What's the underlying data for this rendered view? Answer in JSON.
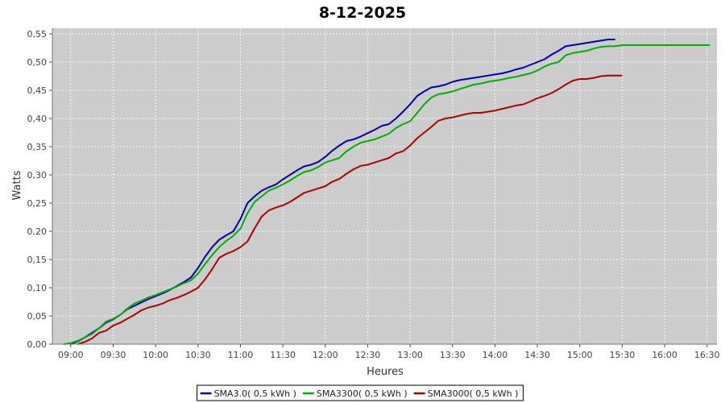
{
  "chart_data": {
    "type": "line",
    "title": "8-12-2025",
    "xlabel": "Heures",
    "ylabel": "Watts",
    "xlim": [
      "08:47",
      "16:37"
    ],
    "ylim": [
      0,
      0.56
    ],
    "x_ticks": [
      "09:00",
      "09:30",
      "10:00",
      "10:30",
      "11:00",
      "11:30",
      "12:00",
      "12:30",
      "13:00",
      "13:30",
      "14:00",
      "14:30",
      "15:00",
      "15:30",
      "16:00",
      "16:30"
    ],
    "y_ticks": [
      "0,00",
      "0,05",
      "0,10",
      "0,15",
      "0,20",
      "0,25",
      "0,30",
      "0,35",
      "0,40",
      "0,45",
      "0,50",
      "0,55"
    ],
    "y_tick_values": [
      0,
      0.05,
      0.1,
      0.15,
      0.2,
      0.25,
      0.3,
      0.35,
      0.4,
      0.45,
      0.5,
      0.55
    ],
    "grid": true,
    "legend_position": "bottom",
    "colors": {
      "plot_bg": "#cccccc",
      "grid": "#ffffff",
      "page_bg": "#ffffff"
    },
    "series": [
      {
        "name": "SMA3.0( 0,5 kWh )",
        "color": "#0000b0",
        "points": [
          [
            "09:00",
            0.0
          ],
          [
            "09:05",
            0.005
          ],
          [
            "09:10",
            0.012
          ],
          [
            "09:15",
            0.02
          ],
          [
            "09:20",
            0.028
          ],
          [
            "09:25",
            0.038
          ],
          [
            "09:30",
            0.044
          ],
          [
            "09:35",
            0.052
          ],
          [
            "09:40",
            0.062
          ],
          [
            "09:45",
            0.068
          ],
          [
            "09:50",
            0.074
          ],
          [
            "09:55",
            0.08
          ],
          [
            "10:00",
            0.085
          ],
          [
            "10:05",
            0.09
          ],
          [
            "10:10",
            0.096
          ],
          [
            "10:15",
            0.103
          ],
          [
            "10:20",
            0.11
          ],
          [
            "10:25",
            0.118
          ],
          [
            "10:30",
            0.135
          ],
          [
            "10:35",
            0.155
          ],
          [
            "10:40",
            0.172
          ],
          [
            "10:45",
            0.185
          ],
          [
            "10:50",
            0.193
          ],
          [
            "10:55",
            0.2
          ],
          [
            "11:00",
            0.222
          ],
          [
            "11:05",
            0.25
          ],
          [
            "11:10",
            0.262
          ],
          [
            "11:15",
            0.272
          ],
          [
            "11:20",
            0.278
          ],
          [
            "11:25",
            0.283
          ],
          [
            "11:30",
            0.292
          ],
          [
            "11:35",
            0.3
          ],
          [
            "11:40",
            0.308
          ],
          [
            "11:45",
            0.315
          ],
          [
            "11:50",
            0.318
          ],
          [
            "11:55",
            0.323
          ],
          [
            "12:00",
            0.332
          ],
          [
            "12:05",
            0.343
          ],
          [
            "12:10",
            0.352
          ],
          [
            "12:15",
            0.36
          ],
          [
            "12:20",
            0.363
          ],
          [
            "12:25",
            0.368
          ],
          [
            "12:30",
            0.374
          ],
          [
            "12:35",
            0.38
          ],
          [
            "12:40",
            0.387
          ],
          [
            "12:45",
            0.39
          ],
          [
            "12:50",
            0.4
          ],
          [
            "12:55",
            0.412
          ],
          [
            "13:00",
            0.425
          ],
          [
            "13:05",
            0.44
          ],
          [
            "13:10",
            0.448
          ],
          [
            "13:15",
            0.455
          ],
          [
            "13:20",
            0.457
          ],
          [
            "13:25",
            0.46
          ],
          [
            "13:30",
            0.465
          ],
          [
            "13:35",
            0.468
          ],
          [
            "13:40",
            0.47
          ],
          [
            "13:45",
            0.472
          ],
          [
            "13:50",
            0.474
          ],
          [
            "13:55",
            0.476
          ],
          [
            "14:00",
            0.478
          ],
          [
            "14:05",
            0.48
          ],
          [
            "14:10",
            0.483
          ],
          [
            "14:15",
            0.487
          ],
          [
            "14:20",
            0.49
          ],
          [
            "14:25",
            0.495
          ],
          [
            "14:30",
            0.5
          ],
          [
            "14:35",
            0.505
          ],
          [
            "14:40",
            0.513
          ],
          [
            "14:45",
            0.52
          ],
          [
            "14:50",
            0.528
          ],
          [
            "14:55",
            0.53
          ],
          [
            "15:00",
            0.532
          ],
          [
            "15:05",
            0.534
          ],
          [
            "15:10",
            0.536
          ],
          [
            "15:15",
            0.538
          ],
          [
            "15:20",
            0.54
          ],
          [
            "15:25",
            0.54
          ]
        ]
      },
      {
        "name": "SMA3300( 0,5 kWh )",
        "color": "#00b000",
        "points": [
          [
            "08:55",
            0.0
          ],
          [
            "09:00",
            0.002
          ],
          [
            "09:05",
            0.006
          ],
          [
            "09:10",
            0.012
          ],
          [
            "09:15",
            0.018
          ],
          [
            "09:20",
            0.028
          ],
          [
            "09:25",
            0.04
          ],
          [
            "09:30",
            0.045
          ],
          [
            "09:35",
            0.052
          ],
          [
            "09:40",
            0.063
          ],
          [
            "09:45",
            0.072
          ],
          [
            "09:50",
            0.077
          ],
          [
            "09:55",
            0.083
          ],
          [
            "10:00",
            0.087
          ],
          [
            "10:05",
            0.092
          ],
          [
            "10:10",
            0.097
          ],
          [
            "10:15",
            0.102
          ],
          [
            "10:20",
            0.108
          ],
          [
            "10:25",
            0.113
          ],
          [
            "10:30",
            0.125
          ],
          [
            "10:35",
            0.142
          ],
          [
            "10:40",
            0.158
          ],
          [
            "10:45",
            0.172
          ],
          [
            "10:50",
            0.183
          ],
          [
            "10:55",
            0.192
          ],
          [
            "11:00",
            0.205
          ],
          [
            "11:05",
            0.232
          ],
          [
            "11:10",
            0.252
          ],
          [
            "11:15",
            0.262
          ],
          [
            "11:20",
            0.272
          ],
          [
            "11:25",
            0.277
          ],
          [
            "11:30",
            0.283
          ],
          [
            "11:35",
            0.29
          ],
          [
            "11:40",
            0.298
          ],
          [
            "11:45",
            0.305
          ],
          [
            "11:50",
            0.308
          ],
          [
            "11:55",
            0.314
          ],
          [
            "12:00",
            0.322
          ],
          [
            "12:05",
            0.326
          ],
          [
            "12:10",
            0.33
          ],
          [
            "12:15",
            0.342
          ],
          [
            "12:20",
            0.35
          ],
          [
            "12:25",
            0.357
          ],
          [
            "12:30",
            0.36
          ],
          [
            "12:35",
            0.363
          ],
          [
            "12:40",
            0.368
          ],
          [
            "12:45",
            0.373
          ],
          [
            "12:50",
            0.383
          ],
          [
            "12:55",
            0.39
          ],
          [
            "13:00",
            0.395
          ],
          [
            "13:05",
            0.41
          ],
          [
            "13:10",
            0.425
          ],
          [
            "13:15",
            0.437
          ],
          [
            "13:20",
            0.443
          ],
          [
            "13:25",
            0.445
          ],
          [
            "13:30",
            0.448
          ],
          [
            "13:35",
            0.452
          ],
          [
            "13:40",
            0.456
          ],
          [
            "13:45",
            0.46
          ],
          [
            "13:50",
            0.462
          ],
          [
            "13:55",
            0.465
          ],
          [
            "14:00",
            0.467
          ],
          [
            "14:05",
            0.469
          ],
          [
            "14:10",
            0.472
          ],
          [
            "14:15",
            0.474
          ],
          [
            "14:20",
            0.477
          ],
          [
            "14:25",
            0.48
          ],
          [
            "14:30",
            0.485
          ],
          [
            "14:35",
            0.492
          ],
          [
            "14:40",
            0.497
          ],
          [
            "14:45",
            0.5
          ],
          [
            "14:50",
            0.512
          ],
          [
            "14:55",
            0.516
          ],
          [
            "15:00",
            0.518
          ],
          [
            "15:05",
            0.52
          ],
          [
            "15:10",
            0.524
          ],
          [
            "15:15",
            0.527
          ],
          [
            "15:20",
            0.528
          ],
          [
            "15:25",
            0.528
          ],
          [
            "15:30",
            0.53
          ],
          [
            "15:35",
            0.53
          ],
          [
            "15:45",
            0.53
          ],
          [
            "16:00",
            0.53
          ],
          [
            "16:15",
            0.53
          ],
          [
            "16:30",
            0.53
          ],
          [
            "16:32",
            0.53
          ]
        ]
      },
      {
        "name": "SMA3000( 0,5 kWh )",
        "color": "#b00000",
        "points": [
          [
            "09:05",
            0.0
          ],
          [
            "09:10",
            0.004
          ],
          [
            "09:15",
            0.01
          ],
          [
            "09:20",
            0.02
          ],
          [
            "09:25",
            0.024
          ],
          [
            "09:30",
            0.033
          ],
          [
            "09:35",
            0.038
          ],
          [
            "09:40",
            0.045
          ],
          [
            "09:45",
            0.052
          ],
          [
            "09:50",
            0.06
          ],
          [
            "09:55",
            0.065
          ],
          [
            "10:00",
            0.068
          ],
          [
            "10:05",
            0.072
          ],
          [
            "10:10",
            0.078
          ],
          [
            "10:15",
            0.082
          ],
          [
            "10:20",
            0.087
          ],
          [
            "10:25",
            0.093
          ],
          [
            "10:30",
            0.1
          ],
          [
            "10:35",
            0.115
          ],
          [
            "10:40",
            0.133
          ],
          [
            "10:45",
            0.153
          ],
          [
            "10:50",
            0.16
          ],
          [
            "10:55",
            0.165
          ],
          [
            "11:00",
            0.172
          ],
          [
            "11:05",
            0.182
          ],
          [
            "11:10",
            0.205
          ],
          [
            "11:15",
            0.226
          ],
          [
            "11:20",
            0.237
          ],
          [
            "11:25",
            0.242
          ],
          [
            "11:30",
            0.246
          ],
          [
            "11:35",
            0.252
          ],
          [
            "11:40",
            0.26
          ],
          [
            "11:45",
            0.268
          ],
          [
            "11:50",
            0.272
          ],
          [
            "11:55",
            0.276
          ],
          [
            "12:00",
            0.28
          ],
          [
            "12:05",
            0.288
          ],
          [
            "12:10",
            0.293
          ],
          [
            "12:15",
            0.302
          ],
          [
            "12:20",
            0.31
          ],
          [
            "12:25",
            0.316
          ],
          [
            "12:30",
            0.318
          ],
          [
            "12:35",
            0.322
          ],
          [
            "12:40",
            0.326
          ],
          [
            "12:45",
            0.33
          ],
          [
            "12:50",
            0.338
          ],
          [
            "12:55",
            0.342
          ],
          [
            "13:00",
            0.352
          ],
          [
            "13:05",
            0.365
          ],
          [
            "13:10",
            0.375
          ],
          [
            "13:15",
            0.385
          ],
          [
            "13:20",
            0.396
          ],
          [
            "13:25",
            0.4
          ],
          [
            "13:30",
            0.402
          ],
          [
            "13:35",
            0.405
          ],
          [
            "13:40",
            0.408
          ],
          [
            "13:45",
            0.41
          ],
          [
            "13:50",
            0.41
          ],
          [
            "13:55",
            0.412
          ],
          [
            "14:00",
            0.414
          ],
          [
            "14:05",
            0.417
          ],
          [
            "14:10",
            0.42
          ],
          [
            "14:15",
            0.423
          ],
          [
            "14:20",
            0.425
          ],
          [
            "14:25",
            0.43
          ],
          [
            "14:30",
            0.436
          ],
          [
            "14:35",
            0.44
          ],
          [
            "14:40",
            0.445
          ],
          [
            "14:45",
            0.452
          ],
          [
            "14:50",
            0.46
          ],
          [
            "14:55",
            0.467
          ],
          [
            "15:00",
            0.47
          ],
          [
            "15:05",
            0.47
          ],
          [
            "15:10",
            0.472
          ],
          [
            "15:15",
            0.475
          ],
          [
            "15:20",
            0.476
          ],
          [
            "15:25",
            0.476
          ],
          [
            "15:30",
            0.476
          ]
        ]
      }
    ]
  }
}
